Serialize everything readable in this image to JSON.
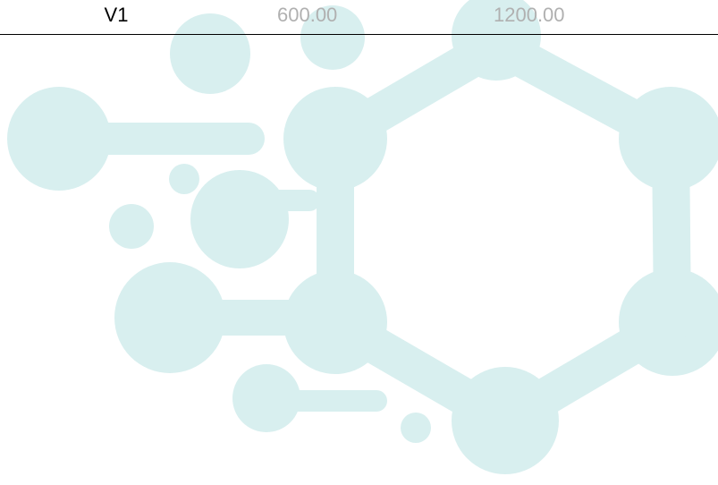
{
  "table": {
    "rows": [
      [
        "V1",
        "600.00",
        "1200.00"
      ]
    ]
  }
}
